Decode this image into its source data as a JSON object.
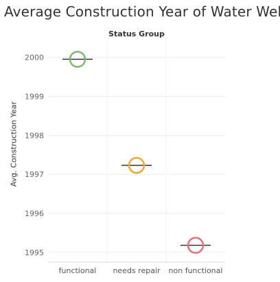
{
  "chart_data": {
    "type": "scatter",
    "title": "Average Construction Year of Water Wells",
    "column_header": "Status Group",
    "ylabel": "Avg. Construction Year",
    "categories": [
      "functional",
      "needs repair",
      "non functional"
    ],
    "values": [
      1999.95,
      1997.23,
      1995.18
    ],
    "colors": [
      "#7cb86a",
      "#f2a43a",
      "#e8707a"
    ],
    "reference_line_color": "#333333",
    "yticks": [
      1995,
      1996,
      1997,
      1998,
      1999,
      2000
    ],
    "ylim": [
      1994.75,
      2000.45
    ],
    "grid": true,
    "marker": "open-circle-with-horizontal-reference-line"
  }
}
